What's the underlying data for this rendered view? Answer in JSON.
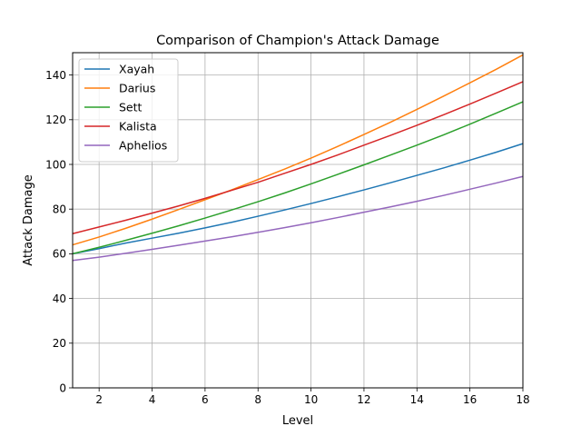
{
  "chart_data": {
    "type": "line",
    "title": "Comparison of Champion's Attack Damage",
    "xlabel": "Level",
    "ylabel": "Attack Damage",
    "xlim": [
      1,
      18
    ],
    "ylim": [
      0,
      150
    ],
    "xticks": [
      2,
      4,
      6,
      8,
      10,
      12,
      14,
      16,
      18
    ],
    "yticks": [
      0,
      20,
      40,
      60,
      80,
      100,
      120,
      140
    ],
    "grid": true,
    "legend_position": "top-left",
    "x": [
      1,
      2,
      3,
      4,
      5,
      6,
      7,
      8,
      9,
      10,
      11,
      12,
      13,
      14,
      15,
      16,
      17,
      18
    ],
    "series": [
      {
        "name": "Xayah",
        "color": "#1f77b4",
        "values": [
          60,
          62.3,
          64.8,
          67.0,
          69.2,
          71.6,
          74.1,
          76.8,
          79.6,
          82.5,
          85.5,
          88.6,
          91.8,
          95.1,
          98.4,
          101.9,
          105.5,
          109.3
        ]
      },
      {
        "name": "Darius",
        "color": "#ff7f0e",
        "values": [
          64,
          67.5,
          71.4,
          75.5,
          79.8,
          84.2,
          88.6,
          93.2,
          97.9,
          102.8,
          108.0,
          113.4,
          118.9,
          124.6,
          130.5,
          136.5,
          142.6,
          149.0
        ]
      },
      {
        "name": "Sett",
        "color": "#2ca02c",
        "values": [
          60,
          62.9,
          66.0,
          69.2,
          72.5,
          76.0,
          79.6,
          83.3,
          87.2,
          91.3,
          95.5,
          99.8,
          104.2,
          108.6,
          113.2,
          118.0,
          123.0,
          128.0
        ]
      },
      {
        "name": "Kalista",
        "color": "#d62728",
        "values": [
          69,
          72.0,
          75.0,
          78.2,
          81.4,
          84.8,
          88.4,
          92.0,
          96.0,
          100.0,
          104.2,
          108.6,
          113.0,
          117.5,
          122.2,
          127.0,
          132.0,
          137.0
        ]
      },
      {
        "name": "Aphelios",
        "color": "#9467bd",
        "values": [
          57,
          58.5,
          60.2,
          62.0,
          63.8,
          65.7,
          67.6,
          69.6,
          71.7,
          73.9,
          76.2,
          78.6,
          81.0,
          83.5,
          86.1,
          88.9,
          91.7,
          94.6
        ]
      }
    ]
  }
}
